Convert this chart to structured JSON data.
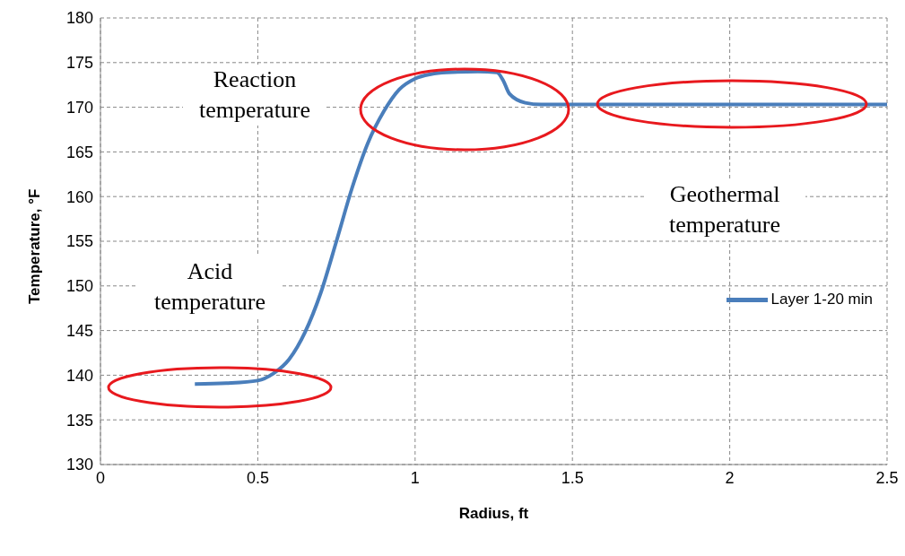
{
  "chart_data": {
    "type": "line",
    "xlabel": "Radius, ft",
    "ylabel": "Temperature, °F",
    "x": [
      0.3,
      0.4,
      0.5,
      0.55,
      0.6,
      0.65,
      0.7,
      0.75,
      0.8,
      0.85,
      0.9,
      0.95,
      1.0,
      1.05,
      1.1,
      1.2,
      1.26,
      1.28,
      1.3,
      1.35,
      1.4,
      1.5,
      2.0,
      2.5
    ],
    "series": [
      {
        "name": "Layer 1-20 min",
        "color": "#4a7ebb",
        "values": [
          139,
          139.1,
          139.4,
          140.2,
          141.8,
          144.8,
          149.2,
          155,
          161,
          166,
          169.5,
          172,
          173.2,
          173.7,
          173.9,
          174,
          173.9,
          173,
          171.5,
          170.5,
          170.3,
          170.3,
          170.3,
          170.3
        ]
      }
    ],
    "xlim": [
      0,
      2.5
    ],
    "xticks": [
      0,
      0.5,
      1,
      1.5,
      2,
      2.5
    ],
    "ylim": [
      130,
      180
    ],
    "yticks": [
      130,
      135,
      140,
      145,
      150,
      155,
      160,
      165,
      170,
      175,
      180
    ],
    "grid": true,
    "legend": "right",
    "marker": "none",
    "line_style": "solid",
    "annotations": [
      "Reaction temperature",
      "Acid temperature",
      "Geothermal temperature"
    ]
  }
}
